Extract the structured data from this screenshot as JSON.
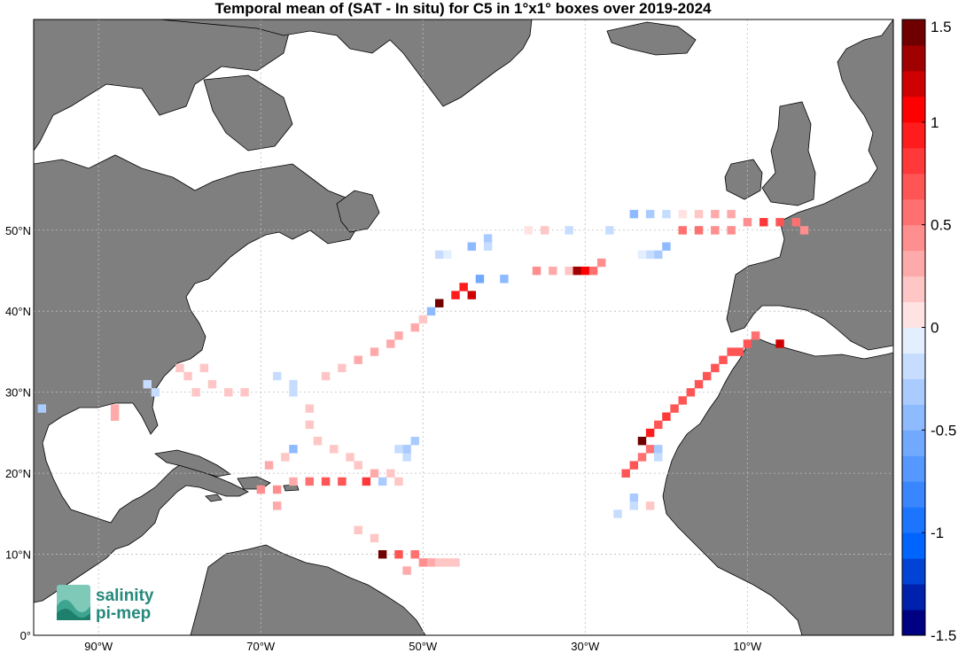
{
  "title": "Temporal mean of (SAT - In situ) for C5 in 1°x1° boxes over 2019-2024",
  "map": {
    "lon_range": [
      -98,
      8
    ],
    "lat_range": [
      0,
      76
    ],
    "lon_ticks": [
      {
        "value": -90,
        "label": "90°W"
      },
      {
        "value": -70,
        "label": "70°W"
      },
      {
        "value": -50,
        "label": "50°W"
      },
      {
        "value": -30,
        "label": "30°W"
      },
      {
        "value": -10,
        "label": "10°W"
      }
    ],
    "lat_ticks": [
      {
        "value": 0,
        "label": "0°"
      },
      {
        "value": 10,
        "label": "10°N"
      },
      {
        "value": 20,
        "label": "20°N"
      },
      {
        "value": 30,
        "label": "30°N"
      },
      {
        "value": 40,
        "label": "40°N"
      },
      {
        "value": 50,
        "label": "50°N"
      }
    ],
    "grid": "dotted",
    "colors": {
      "land": "#7f7f7f",
      "ocean": "#ffffff",
      "coast": "#000000"
    }
  },
  "colorbar": {
    "range": [
      -1.5,
      1.5
    ],
    "ticks": [
      {
        "value": 1.5,
        "label": "1.5"
      },
      {
        "value": 1,
        "label": "1"
      },
      {
        "value": 0.5,
        "label": "0.5"
      },
      {
        "value": 0,
        "label": "0"
      },
      {
        "value": -0.5,
        "label": "-0.5"
      },
      {
        "value": -1,
        "label": "-1"
      },
      {
        "value": -1.5,
        "label": "-1.5"
      }
    ],
    "steps": 24,
    "colormap": "blue-white-red diverging"
  },
  "cells": [
    [
      -78,
      30,
      0.15
    ],
    [
      -76,
      31,
      0.2
    ],
    [
      -74,
      30,
      0.2
    ],
    [
      -72,
      30,
      0.25
    ],
    [
      -77,
      33,
      0.2
    ],
    [
      -80,
      33,
      0.2
    ],
    [
      -79,
      32,
      0.15
    ],
    [
      -68,
      32,
      -0.2
    ],
    [
      -66,
      31,
      -0.15
    ],
    [
      -66,
      30,
      -0.2
    ],
    [
      -84,
      31,
      -0.25
    ],
    [
      -83,
      30,
      -0.15
    ],
    [
      -62,
      32,
      0.2
    ],
    [
      -60,
      33,
      0.25
    ],
    [
      -58,
      34,
      0.3
    ],
    [
      -56,
      35,
      0.35
    ],
    [
      -54,
      36,
      0.35
    ],
    [
      -53,
      37,
      0.3
    ],
    [
      -51,
      38,
      0.3
    ],
    [
      -50,
      39,
      0.25
    ],
    [
      -49,
      40,
      -0.4
    ],
    [
      -48,
      41,
      1.4
    ],
    [
      -46,
      42,
      0.9
    ],
    [
      -45,
      43,
      1.0
    ],
    [
      -44,
      42,
      1.2
    ],
    [
      -43,
      44,
      -0.6
    ],
    [
      -40,
      44,
      -0.5
    ],
    [
      -44,
      48,
      -0.5
    ],
    [
      -42,
      49,
      -0.3
    ],
    [
      -42,
      48,
      -0.2
    ],
    [
      -48,
      47,
      -0.15
    ],
    [
      -47,
      47,
      -0.1
    ],
    [
      -37,
      50,
      0.1
    ],
    [
      -35,
      50,
      0.15
    ],
    [
      -32,
      50,
      -0.15
    ],
    [
      -27,
      50,
      -0.2
    ],
    [
      -36,
      45,
      0.45
    ],
    [
      -34,
      45,
      0.35
    ],
    [
      -32,
      45,
      0.2
    ],
    [
      -31,
      45,
      1.3
    ],
    [
      -30,
      45,
      1.1
    ],
    [
      -29,
      45,
      0.6
    ],
    [
      -28,
      46,
      0.5
    ],
    [
      -24,
      52,
      -0.4
    ],
    [
      -22,
      52,
      -0.35
    ],
    [
      -20,
      52,
      -0.25
    ],
    [
      -18,
      52,
      0.1
    ],
    [
      -16,
      52,
      0.25
    ],
    [
      -14,
      52,
      0.3
    ],
    [
      -12,
      52,
      0.35
    ],
    [
      -10,
      51,
      0.5
    ],
    [
      -8,
      51,
      0.85
    ],
    [
      -6,
      51,
      0.75
    ],
    [
      -4,
      51,
      0.6
    ],
    [
      -3,
      50,
      0.45
    ],
    [
      -18,
      50,
      0.6
    ],
    [
      -16,
      50,
      0.55
    ],
    [
      -14,
      50,
      0.45
    ],
    [
      -12,
      50,
      0.4
    ],
    [
      -20,
      48,
      -0.4
    ],
    [
      -21,
      47,
      -0.3
    ],
    [
      -22,
      47,
      -0.2
    ],
    [
      -23,
      47,
      -0.1
    ],
    [
      -9,
      37,
      0.6
    ],
    [
      -10,
      36,
      0.7
    ],
    [
      -11,
      35,
      0.65
    ],
    [
      -12,
      35,
      0.7
    ],
    [
      -13,
      34,
      0.75
    ],
    [
      -14,
      33,
      0.7
    ],
    [
      -15,
      32,
      0.75
    ],
    [
      -16,
      31,
      0.7
    ],
    [
      -17,
      30,
      0.65
    ],
    [
      -18,
      29,
      0.7
    ],
    [
      -19,
      28,
      0.75
    ],
    [
      -20,
      27,
      0.8
    ],
    [
      -21,
      26,
      0.75
    ],
    [
      -22,
      25,
      0.9
    ],
    [
      -23,
      24,
      1.4
    ],
    [
      -22,
      23,
      0.55
    ],
    [
      -23,
      22,
      0.6
    ],
    [
      -24,
      21,
      0.7
    ],
    [
      -25,
      20,
      0.65
    ],
    [
      -6,
      36,
      1.2
    ],
    [
      -21,
      23,
      -0.3
    ],
    [
      -21,
      22,
      -0.2
    ],
    [
      -24,
      17,
      -0.3
    ],
    [
      -24,
      16,
      -0.2
    ],
    [
      -26,
      15,
      -0.15
    ],
    [
      -22,
      16,
      0.2
    ],
    [
      -60,
      19,
      0.7
    ],
    [
      -62,
      19,
      0.75
    ],
    [
      -64,
      19,
      0.6
    ],
    [
      -66,
      19,
      0.3
    ],
    [
      -68,
      18,
      0.5
    ],
    [
      -70,
      18,
      0.4
    ],
    [
      -57,
      19,
      0.8
    ],
    [
      -55,
      19,
      -0.3
    ],
    [
      -56,
      20,
      0.35
    ],
    [
      -54,
      20,
      0.15
    ],
    [
      -53,
      19,
      0.2
    ],
    [
      -64,
      28,
      0.15
    ],
    [
      -64,
      26,
      0.15
    ],
    [
      -63,
      24,
      0.2
    ],
    [
      -61,
      23,
      0.25
    ],
    [
      -59,
      22,
      0.2
    ],
    [
      -58,
      21,
      0.25
    ],
    [
      -66,
      23,
      -0.45
    ],
    [
      -67,
      22,
      0.2
    ],
    [
      -69,
      21,
      0.3
    ],
    [
      -68,
      16,
      0.3
    ],
    [
      -52,
      22,
      -0.25
    ],
    [
      -52,
      23,
      -0.3
    ],
    [
      -51,
      24,
      -0.35
    ],
    [
      -53,
      23,
      -0.15
    ],
    [
      -58,
      13,
      0.2
    ],
    [
      -56,
      12,
      0.25
    ],
    [
      -55,
      10,
      1.4
    ],
    [
      -53,
      10,
      0.7
    ],
    [
      -51,
      10,
      0.55
    ],
    [
      -50,
      9,
      0.4
    ],
    [
      -49,
      9,
      0.3
    ],
    [
      -48,
      9,
      0.25
    ],
    [
      -47,
      9,
      0.2
    ],
    [
      -46,
      9,
      0.15
    ],
    [
      -52,
      8,
      0.3
    ],
    [
      -88,
      28,
      0.35
    ],
    [
      -88,
      27,
      0.3
    ],
    [
      -97,
      28,
      -0.3
    ]
  ],
  "logo": {
    "line1": "salinity",
    "line2": "pi-mep"
  }
}
